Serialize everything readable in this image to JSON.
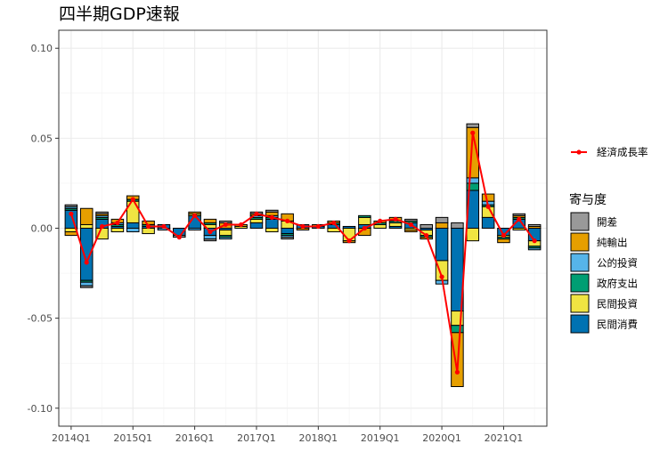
{
  "chart_data": {
    "type": "bar",
    "title": "四半期GDP速報",
    "xlabel": "",
    "ylabel": "",
    "ylim": [
      -0.11,
      0.11
    ],
    "yticks": [
      -0.1,
      -0.05,
      0.0,
      0.05,
      0.1
    ],
    "ytick_labels": [
      "-0.10",
      "-0.05",
      "0.00",
      "0.05",
      "0.10"
    ],
    "xtick_labels": [
      "2014Q1",
      "2015Q1",
      "2016Q1",
      "2017Q1",
      "2018Q1",
      "2019Q1",
      "2020Q1",
      "2021Q1"
    ],
    "xtick_index": [
      0,
      4,
      8,
      12,
      16,
      20,
      24,
      28
    ],
    "grid": true,
    "legend_position": "right",
    "categories": [
      "2014Q1",
      "2014Q2",
      "2014Q3",
      "2014Q4",
      "2015Q1",
      "2015Q2",
      "2015Q3",
      "2015Q4",
      "2016Q1",
      "2016Q2",
      "2016Q3",
      "2016Q4",
      "2017Q1",
      "2017Q2",
      "2017Q3",
      "2017Q4",
      "2018Q1",
      "2018Q2",
      "2018Q3",
      "2018Q4",
      "2019Q1",
      "2019Q2",
      "2019Q3",
      "2019Q4",
      "2020Q1",
      "2020Q2",
      "2020Q3",
      "2020Q4",
      "2021Q1",
      "2021Q2",
      "2021Q3"
    ],
    "series": [
      {
        "name": "開差",
        "color": "#999999",
        "values": [
          0.001,
          -0.001,
          0.001,
          0.0,
          0.0,
          0.0,
          0.0,
          -0.001,
          0.0,
          -0.001,
          0.001,
          0.0,
          0.001,
          0.001,
          -0.001,
          0.0,
          0.0,
          0.0,
          0.0,
          0.0,
          0.0,
          0.0,
          0.001,
          0.002,
          0.003,
          0.003,
          0.002,
          0.0,
          0.0,
          0.001,
          0.001
        ]
      },
      {
        "name": "純輸出",
        "color": "#E69F00",
        "values": [
          -0.002,
          0.009,
          0.001,
          0.002,
          0.002,
          0.002,
          0.0,
          0.0,
          0.001,
          0.002,
          0.003,
          0.001,
          0.001,
          0.002,
          0.004,
          -0.001,
          0.001,
          0.001,
          -0.001,
          -0.004,
          0.001,
          0.002,
          -0.001,
          -0.001,
          0.003,
          -0.03,
          0.028,
          0.004,
          -0.002,
          0.001,
          0.001
        ]
      },
      {
        "name": "公的投資",
        "color": "#56B4E9",
        "values": [
          0.001,
          -0.002,
          0.001,
          0.001,
          -0.002,
          0.0,
          -0.001,
          0.0,
          -0.001,
          -0.002,
          -0.001,
          0.0,
          0.001,
          0.001,
          -0.001,
          0.0,
          0.0,
          0.0,
          0.0,
          0.0,
          0.0,
          0.0,
          0.0,
          0.0,
          -0.002,
          0.0,
          0.003,
          0.002,
          0.0,
          0.0,
          -0.001
        ]
      },
      {
        "name": "政府支出",
        "color": "#009E73",
        "values": [
          0.001,
          -0.001,
          0.001,
          0.001,
          0.001,
          0.001,
          0.0,
          0.0,
          0.0,
          0.001,
          -0.001,
          0.0,
          0.001,
          0.001,
          -0.001,
          0.0,
          0.0,
          0.001,
          0.0,
          0.001,
          0.001,
          0.001,
          0.001,
          -0.001,
          0.0,
          -0.004,
          0.004,
          0.001,
          -0.001,
          0.001,
          -0.001
        ]
      },
      {
        "name": "民間投資",
        "color": "#F0E442",
        "values": [
          -0.002,
          0.002,
          -0.006,
          -0.002,
          0.012,
          -0.003,
          0.0,
          0.0,
          0.001,
          0.002,
          -0.003,
          0.001,
          0.002,
          -0.002,
          0.004,
          0.0,
          0.0,
          -0.002,
          -0.007,
          0.004,
          0.002,
          0.002,
          -0.001,
          -0.003,
          -0.011,
          -0.008,
          -0.007,
          0.006,
          -0.001,
          -0.001,
          -0.003
        ]
      },
      {
        "name": "民間消費",
        "color": "#0072B2",
        "values": [
          0.01,
          -0.029,
          0.005,
          0.001,
          0.003,
          0.001,
          0.002,
          -0.004,
          0.007,
          -0.004,
          -0.001,
          0.0,
          0.003,
          0.005,
          -0.003,
          0.002,
          0.001,
          0.002,
          0.001,
          0.002,
          0.0,
          0.001,
          0.003,
          -0.001,
          -0.018,
          -0.046,
          0.021,
          0.006,
          -0.004,
          0.005,
          -0.007
        ]
      }
    ],
    "line_series": {
      "name": "経済成長率",
      "color": "#FF0000",
      "values": [
        0.008,
        -0.019,
        0.001,
        0.003,
        0.016,
        0.001,
        0.001,
        -0.005,
        0.007,
        -0.002,
        0.002,
        0.002,
        0.008,
        0.006,
        0.004,
        0.001,
        0.001,
        0.003,
        -0.007,
        0.0,
        0.004,
        0.005,
        0.002,
        -0.004,
        -0.027,
        -0.08,
        0.053,
        0.012,
        -0.004,
        0.005,
        -0.007
      ]
    },
    "legend_title": "寄与度"
  }
}
